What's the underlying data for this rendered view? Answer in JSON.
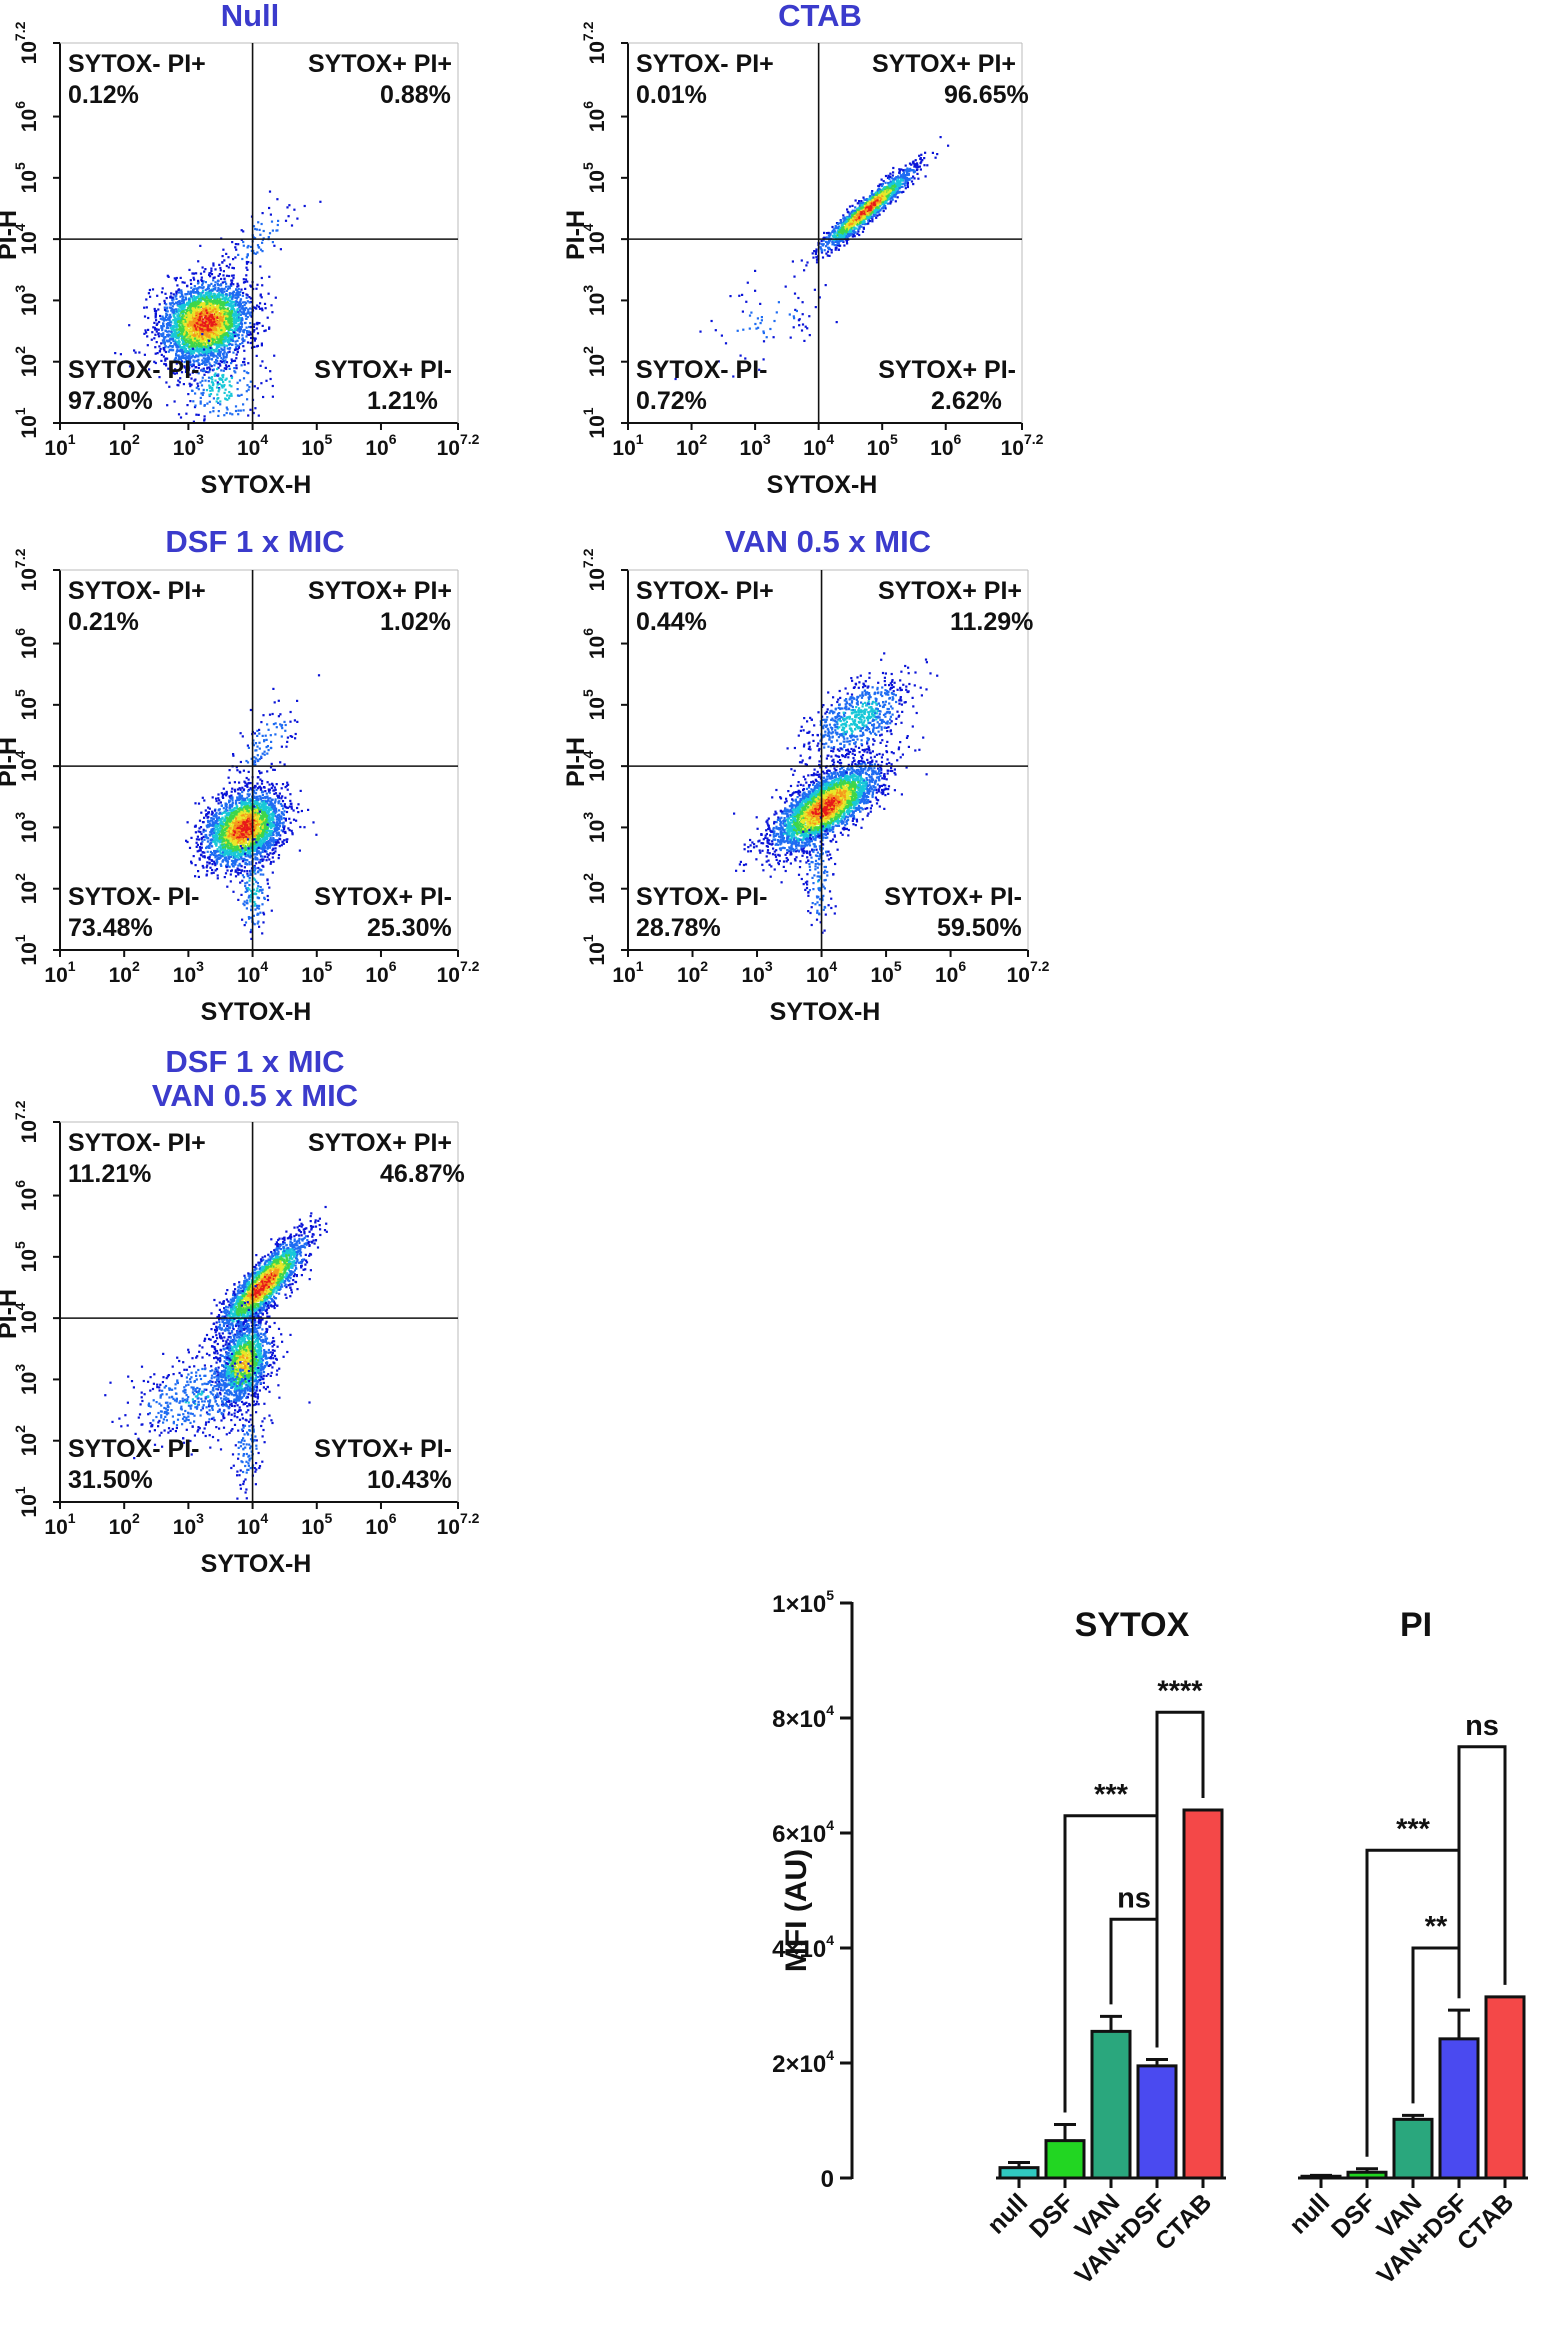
{
  "colors": {
    "title": "#3b3bcc",
    "axis": "#111111",
    "density_scale": [
      "#0a14d8",
      "#1e6cf2",
      "#18c8d8",
      "#3fd64a",
      "#e8e82a",
      "#f59a1c",
      "#e8191a"
    ],
    "bar_fills": {
      "null": "#30c8c0",
      "DSF": "#22d622",
      "VAN": "#2aa77d",
      "VAN+DSF": "#4a4af0",
      "CTAB": "#f44848"
    }
  },
  "flow_axes": {
    "x_label": "SYTOX-H",
    "y_label": "PI-H",
    "ticks": [
      {
        "base": "10",
        "exp": "1"
      },
      {
        "base": "10",
        "exp": "2"
      },
      {
        "base": "10",
        "exp": "3"
      },
      {
        "base": "10",
        "exp": "4"
      },
      {
        "base": "10",
        "exp": "5"
      },
      {
        "base": "10",
        "exp": "6"
      },
      {
        "base": "10",
        "exp": "7.2"
      }
    ]
  },
  "panels": [
    {
      "title_lines": [
        "Null"
      ],
      "q_ul": {
        "label": "SYTOX- PI+",
        "value": "0.12%"
      },
      "q_ur": {
        "label": "SYTOX+ PI+",
        "value": "0.88%"
      },
      "q_ll": {
        "label": "SYTOX- PI-",
        "value": "97.80%"
      },
      "q_lr": {
        "label": "SYTOX+ PI-",
        "value": "1.21%"
      },
      "gate": {
        "x": 4,
        "y": 4
      },
      "populations": [
        {
          "cx": 3.25,
          "cy": 2.65,
          "sx": 0.34,
          "sy": 0.33,
          "rho": 0.15,
          "n": 3200,
          "peak": 1.0
        },
        {
          "cx": 3.5,
          "cy": 1.6,
          "sx": 0.3,
          "sy": 0.35,
          "rho": 0.0,
          "n": 220,
          "peak": 0.35
        },
        {
          "cx": 4.1,
          "cy": 4.05,
          "sx": 0.3,
          "sy": 0.35,
          "rho": 0.7,
          "n": 90,
          "peak": 0.18
        }
      ]
    },
    {
      "title_lines": [
        "CTAB"
      ],
      "q_ul": {
        "label": "SYTOX- PI+",
        "value": "0.01%"
      },
      "q_ur": {
        "label": "SYTOX+ PI+",
        "value": "96.65%"
      },
      "q_ll": {
        "label": "SYTOX- PI-",
        "value": "0.72%"
      },
      "q_lr": {
        "label": "SYTOX+ PI-",
        "value": "2.62%"
      },
      "gate": {
        "x": 4,
        "y": 4
      },
      "populations": [
        {
          "cx": 4.75,
          "cy": 4.5,
          "sx": 0.36,
          "sy": 0.33,
          "rho": 0.95,
          "n": 1600,
          "peak": 1.0
        },
        {
          "cx": 3.1,
          "cy": 2.65,
          "sx": 0.55,
          "sy": 0.35,
          "rho": 0.55,
          "n": 70,
          "peak": 0.15
        }
      ]
    },
    {
      "title_lines": [
        "DSF 1 x MIC"
      ],
      "q_ul": {
        "label": "SYTOX- PI+",
        "value": "0.21%"
      },
      "q_ur": {
        "label": "SYTOX+ PI+",
        "value": "1.02%"
      },
      "q_ll": {
        "label": "SYTOX- PI-",
        "value": "73.48%"
      },
      "q_lr": {
        "label": "SYTOX+ PI-",
        "value": "25.30%"
      },
      "gate": {
        "x": 4,
        "y": 4
      },
      "populations": [
        {
          "cx": 3.85,
          "cy": 3.0,
          "sx": 0.3,
          "sy": 0.3,
          "rho": 0.3,
          "n": 2800,
          "peak": 1.0
        },
        {
          "cx": 4.0,
          "cy": 2.0,
          "sx": 0.12,
          "sy": 0.45,
          "rho": 0.0,
          "n": 150,
          "peak": 0.3
        },
        {
          "cx": 4.2,
          "cy": 4.4,
          "sx": 0.25,
          "sy": 0.35,
          "rho": 0.6,
          "n": 110,
          "peak": 0.2
        }
      ]
    },
    {
      "title_lines": [
        "VAN 0.5 x MIC"
      ],
      "q_ul": {
        "label": "SYTOX- PI+",
        "value": "0.44%"
      },
      "q_ur": {
        "label": "SYTOX+ PI+",
        "value": "11.29%"
      },
      "q_ll": {
        "label": "SYTOX- PI-",
        "value": "28.78%"
      },
      "q_lr": {
        "label": "SYTOX+ PI-",
        "value": "59.50%"
      },
      "gate": {
        "x": 4,
        "y": 4
      },
      "populations": [
        {
          "cx": 4.05,
          "cy": 3.35,
          "sx": 0.4,
          "sy": 0.34,
          "rho": 0.7,
          "n": 3400,
          "peak": 1.0
        },
        {
          "cx": 4.55,
          "cy": 4.8,
          "sx": 0.38,
          "sy": 0.32,
          "rho": 0.5,
          "n": 700,
          "peak": 0.35
        },
        {
          "cx": 3.95,
          "cy": 2.2,
          "sx": 0.12,
          "sy": 0.45,
          "rho": 0.0,
          "n": 140,
          "peak": 0.25
        }
      ]
    },
    {
      "title_lines": [
        "DSF 1 x MIC",
        "VAN 0.5 x MIC"
      ],
      "q_ul": {
        "label": "SYTOX- PI+",
        "value": "11.21%"
      },
      "q_ur": {
        "label": "SYTOX+ PI+",
        "value": "46.87%"
      },
      "q_ll": {
        "label": "SYTOX- PI-",
        "value": "31.50%"
      },
      "q_lr": {
        "label": "SYTOX+ PI-",
        "value": "10.43%"
      },
      "gate": {
        "x": 4,
        "y": 4
      },
      "populations": [
        {
          "cx": 4.15,
          "cy": 4.55,
          "sx": 0.33,
          "sy": 0.38,
          "rho": 0.85,
          "n": 2200,
          "peak": 1.0
        },
        {
          "cx": 3.85,
          "cy": 3.3,
          "sx": 0.2,
          "sy": 0.33,
          "rho": 0.3,
          "n": 1400,
          "peak": 0.75
        },
        {
          "cx": 3.15,
          "cy": 2.75,
          "sx": 0.55,
          "sy": 0.35,
          "rho": 0.4,
          "n": 500,
          "peak": 0.25
        },
        {
          "cx": 3.9,
          "cy": 1.9,
          "sx": 0.12,
          "sy": 0.35,
          "rho": 0.0,
          "n": 120,
          "peak": 0.2
        }
      ]
    }
  ],
  "chart_data": {
    "type": "bar",
    "ylabel": "MFI (AU)",
    "ylim": [
      0,
      100000
    ],
    "yticks": [
      {
        "value": 0,
        "label": "0",
        "exp": ""
      },
      {
        "value": 20000,
        "label": "2×10",
        "exp": "4"
      },
      {
        "value": 40000,
        "label": "4×10",
        "exp": "4"
      },
      {
        "value": 60000,
        "label": "6×10",
        "exp": "4"
      },
      {
        "value": 80000,
        "label": "8×10",
        "exp": "4"
      },
      {
        "value": 100000,
        "label": "1×10",
        "exp": "5"
      }
    ],
    "categories": [
      "null",
      "DSF",
      "VAN",
      "VAN+DSF",
      "CTAB"
    ],
    "groups": [
      {
        "name": "SYTOX",
        "values": [
          1800,
          6500,
          25500,
          19500,
          64000
        ],
        "errors": [
          900,
          2800,
          2600,
          1100,
          0
        ]
      },
      {
        "name": "PI",
        "values": [
          300,
          1000,
          10200,
          24200,
          31500
        ],
        "errors": [
          150,
          600,
          700,
          5000,
          0
        ]
      }
    ],
    "significance": [
      {
        "group": 0,
        "from": 3,
        "to": 4,
        "y": 81000,
        "label": "****"
      },
      {
        "group": 0,
        "from": 1,
        "to": 3,
        "y": 63000,
        "label": "***"
      },
      {
        "group": 0,
        "from": 2,
        "to": 3,
        "y": 45000,
        "label": "ns"
      },
      {
        "group": 1,
        "from": 3,
        "to": 4,
        "y": 75000,
        "label": "ns"
      },
      {
        "group": 1,
        "from": 1,
        "to": 3,
        "y": 57000,
        "label": "***"
      },
      {
        "group": 1,
        "from": 2,
        "to": 3,
        "y": 40000,
        "label": "**"
      }
    ]
  }
}
